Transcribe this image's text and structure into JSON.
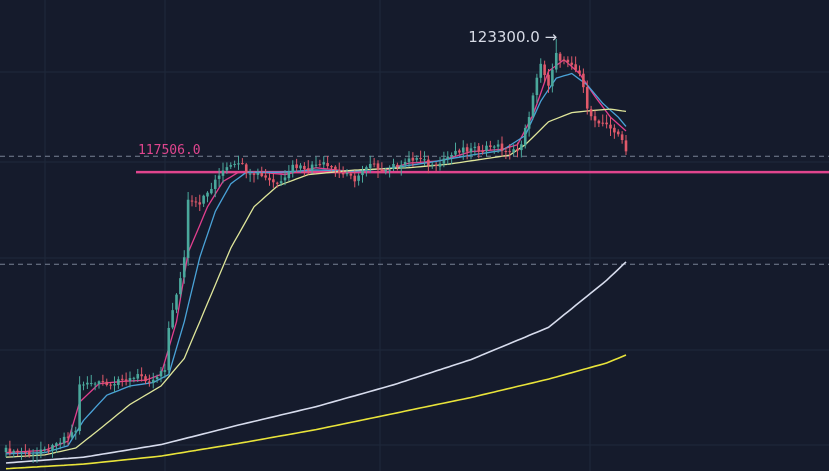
{
  "chart_data": {
    "type": "candlestick",
    "title": "",
    "xlabel": "",
    "ylabel": "",
    "ylim": [
      104500,
      125000
    ],
    "grid": true,
    "colors": {
      "background": "#151b2c",
      "grid": "#1f283b",
      "up": "#4aa89c",
      "down": "#e0596a",
      "ema_fast": "#e23f8e",
      "ema_mid": "#4aa3d8",
      "ema_slow": "#dfe69a",
      "ma_long": "#d7dced",
      "ma_xlong": "#e9e43a",
      "level_line": "#e0458e",
      "dashed_line": "#9aa3b8",
      "high_label": "#d7dbe6",
      "level_label": "#e0458e"
    },
    "high_annotation": {
      "text": "123300.0 →",
      "value": 123300
    },
    "level_annotation": {
      "text": "117506.0",
      "value": 117506
    },
    "dashed_levels": [
      118200,
      113500
    ],
    "ohlc": [],
    "series": [
      {
        "key": "ema_fast",
        "values": []
      },
      {
        "key": "ema_mid",
        "values": []
      },
      {
        "key": "ema_slow",
        "values": []
      },
      {
        "key": "ma_long",
        "values": []
      },
      {
        "key": "ma_xlong",
        "values": []
      }
    ],
    "anchors": {
      "close": [
        [
          0,
          105400
        ],
        [
          8,
          105250
        ],
        [
          12,
          105500
        ],
        [
          16,
          106000
        ],
        [
          18,
          106300
        ],
        [
          19,
          108200
        ],
        [
          24,
          108450
        ],
        [
          28,
          108300
        ],
        [
          31,
          108500
        ],
        [
          34,
          108700
        ],
        [
          36,
          108300
        ],
        [
          38,
          108400
        ],
        [
          41,
          108900
        ],
        [
          42,
          110800
        ],
        [
          44,
          112100
        ],
        [
          46,
          113800
        ],
        [
          47,
          116400
        ],
        [
          50,
          116200
        ],
        [
          53,
          116800
        ],
        [
          56,
          117650
        ],
        [
          58,
          117900
        ],
        [
          60,
          118000
        ],
        [
          62,
          117600
        ],
        [
          66,
          117400
        ],
        [
          70,
          117000
        ],
        [
          74,
          117800
        ],
        [
          78,
          117700
        ],
        [
          82,
          118000
        ],
        [
          86,
          117500
        ],
        [
          90,
          117200
        ],
        [
          94,
          117800
        ],
        [
          98,
          117600
        ],
        [
          102,
          117900
        ],
        [
          106,
          118100
        ],
        [
          110,
          117800
        ],
        [
          114,
          118200
        ],
        [
          118,
          118450
        ],
        [
          122,
          118500
        ],
        [
          126,
          118700
        ],
        [
          130,
          118300
        ],
        [
          133,
          118700
        ],
        [
          135,
          120000
        ],
        [
          138,
          122300
        ],
        [
          140,
          121200
        ],
        [
          142,
          122600
        ],
        [
          145,
          122200
        ],
        [
          148,
          121800
        ],
        [
          150,
          120400
        ],
        [
          152,
          119700
        ],
        [
          156,
          119400
        ],
        [
          158,
          119200
        ],
        [
          160,
          118400
        ]
      ],
      "ema_fast": [
        [
          0,
          105300
        ],
        [
          10,
          105400
        ],
        [
          16,
          105800
        ],
        [
          19,
          107500
        ],
        [
          24,
          108300
        ],
        [
          30,
          108400
        ],
        [
          36,
          108450
        ],
        [
          40,
          108700
        ],
        [
          44,
          111000
        ],
        [
          47,
          114000
        ],
        [
          52,
          116000
        ],
        [
          56,
          117100
        ],
        [
          60,
          117500
        ],
        [
          66,
          117500
        ],
        [
          72,
          117400
        ],
        [
          80,
          117700
        ],
        [
          88,
          117550
        ],
        [
          96,
          117500
        ],
        [
          104,
          117900
        ],
        [
          112,
          118000
        ],
        [
          120,
          118400
        ],
        [
          128,
          118500
        ],
        [
          132,
          118700
        ],
        [
          136,
          120000
        ],
        [
          140,
          121900
        ],
        [
          144,
          122400
        ],
        [
          148,
          121800
        ],
        [
          152,
          120800
        ],
        [
          156,
          119900
        ],
        [
          160,
          119300
        ]
      ],
      "ema_mid": [
        [
          0,
          105250
        ],
        [
          10,
          105300
        ],
        [
          16,
          105600
        ],
        [
          20,
          106700
        ],
        [
          26,
          107800
        ],
        [
          32,
          108200
        ],
        [
          38,
          108350
        ],
        [
          42,
          108700
        ],
        [
          46,
          111000
        ],
        [
          50,
          113800
        ],
        [
          54,
          115800
        ],
        [
          58,
          117000
        ],
        [
          62,
          117500
        ],
        [
          70,
          117500
        ],
        [
          80,
          117600
        ],
        [
          90,
          117550
        ],
        [
          100,
          117700
        ],
        [
          110,
          117950
        ],
        [
          120,
          118250
        ],
        [
          128,
          118450
        ],
        [
          134,
          119100
        ],
        [
          138,
          120600
        ],
        [
          142,
          121600
        ],
        [
          146,
          121800
        ],
        [
          150,
          121300
        ],
        [
          154,
          120500
        ],
        [
          158,
          119900
        ],
        [
          160,
          119500
        ]
      ],
      "ema_slow": [
        [
          0,
          105100
        ],
        [
          10,
          105200
        ],
        [
          18,
          105500
        ],
        [
          24,
          106300
        ],
        [
          32,
          107400
        ],
        [
          40,
          108200
        ],
        [
          46,
          109400
        ],
        [
          52,
          111800
        ],
        [
          58,
          114200
        ],
        [
          64,
          116000
        ],
        [
          70,
          116900
        ],
        [
          78,
          117400
        ],
        [
          90,
          117600
        ],
        [
          104,
          117700
        ],
        [
          114,
          117850
        ],
        [
          122,
          118050
        ],
        [
          130,
          118250
        ],
        [
          134,
          118700
        ],
        [
          140,
          119700
        ],
        [
          146,
          120100
        ],
        [
          152,
          120200
        ],
        [
          156,
          120250
        ],
        [
          160,
          120150
        ]
      ],
      "ma_long": [
        [
          0,
          104850
        ],
        [
          20,
          105100
        ],
        [
          40,
          105650
        ],
        [
          60,
          106500
        ],
        [
          80,
          107300
        ],
        [
          100,
          108250
        ],
        [
          120,
          109350
        ],
        [
          140,
          110750
        ],
        [
          155,
          112800
        ],
        [
          160,
          113600
        ]
      ],
      "ma_xlong": [
        [
          0,
          104600
        ],
        [
          20,
          104800
        ],
        [
          40,
          105150
        ],
        [
          60,
          105700
        ],
        [
          80,
          106300
        ],
        [
          100,
          107000
        ],
        [
          120,
          107700
        ],
        [
          140,
          108500
        ],
        [
          155,
          109200
        ],
        [
          160,
          109550
        ]
      ]
    }
  }
}
